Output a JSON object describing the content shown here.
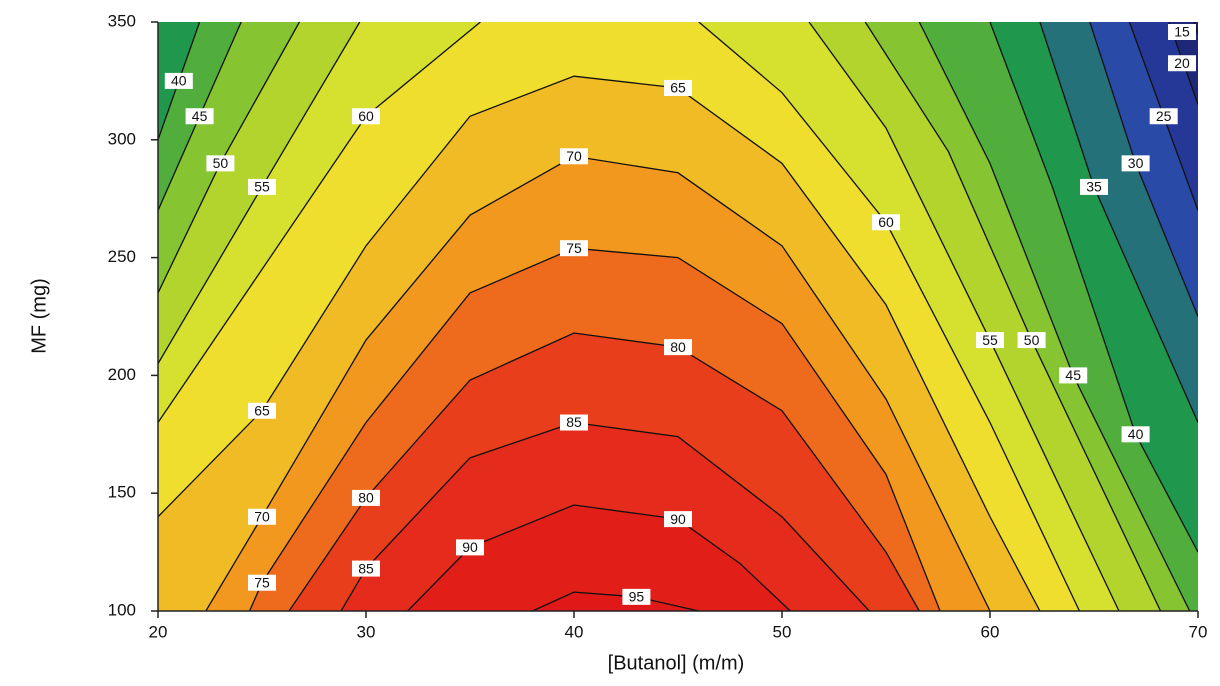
{
  "chart_data": {
    "type": "contour",
    "x_label": "[Butanol] (m/m)",
    "y_label": "MF (mg)",
    "xlim": [
      20,
      70
    ],
    "ylim": [
      100,
      350
    ],
    "xticks": [
      20,
      30,
      40,
      50,
      60,
      70
    ],
    "yticks": [
      100,
      150,
      200,
      250,
      300,
      350
    ],
    "colormap": [
      "#1c1f6a",
      "#2a44b0",
      "#1f9a48",
      "#9ccc2c",
      "#eeea30",
      "#f39a1e",
      "#e8341c",
      "#e01818"
    ],
    "contours": [
      {
        "level": 15,
        "x": [
          69.8,
          70
        ],
        "y": [
          350,
          345
        ]
      },
      {
        "level": 20,
        "x": [
          68.6,
          70
        ],
        "y": [
          350,
          315
        ]
      },
      {
        "level": 25,
        "x": [
          66.7,
          70
        ],
        "y": [
          350,
          270
        ]
      },
      {
        "level": 30,
        "x": [
          64.8,
          67,
          70
        ],
        "y": [
          350,
          290,
          225
        ]
      },
      {
        "level": 35,
        "x": [
          62.4,
          65,
          70
        ],
        "y": [
          350,
          280,
          180
        ]
      },
      {
        "level": 40,
        "x": [
          20,
          22,
          null,
          60,
          63,
          67,
          70
        ],
        "y": [
          300,
          350,
          null,
          350,
          280,
          175,
          125
        ]
      },
      {
        "level": 45,
        "x": [
          20,
          24,
          null,
          56.6,
          60,
          64,
          69.6
        ],
        "y": [
          270,
          350,
          null,
          350,
          290,
          200,
          100
        ]
      },
      {
        "level": 50,
        "x": [
          20,
          23,
          26.8,
          null,
          54,
          58,
          62,
          68.2
        ],
        "y": [
          235,
          290,
          350,
          null,
          350,
          295,
          215,
          100
        ]
      },
      {
        "level": 55,
        "x": [
          20,
          25,
          29.7,
          null,
          51.3,
          55,
          60,
          66.2
        ],
        "y": [
          205,
          280,
          350,
          null,
          350,
          305,
          215,
          100
        ]
      },
      {
        "level": 60,
        "x": [
          20,
          25,
          30,
          35.5,
          null,
          46,
          50,
          55,
          60,
          64.3
        ],
        "y": [
          180,
          245,
          310,
          350,
          null,
          350,
          320,
          265,
          180,
          100
        ]
      },
      {
        "level": 65,
        "x": [
          20,
          25,
          30,
          35,
          40,
          45,
          50,
          55,
          60,
          62.4
        ],
        "y": [
          140,
          185,
          255,
          310,
          327,
          322,
          290,
          230,
          140,
          100
        ]
      },
      {
        "level": 70,
        "x": [
          22.3,
          25,
          30,
          35,
          40,
          45,
          50,
          55,
          60
        ],
        "y": [
          100,
          140,
          215,
          268,
          293,
          286,
          255,
          190,
          100
        ]
      },
      {
        "level": 75,
        "x": [
          24.4,
          25,
          30,
          35,
          40,
          45,
          50,
          55,
          57.6
        ],
        "y": [
          100,
          112,
          180,
          235,
          254,
          250,
          222,
          158,
          100
        ]
      },
      {
        "level": 80,
        "x": [
          26.3,
          30,
          35,
          40,
          45,
          50,
          55,
          56.6
        ],
        "y": [
          100,
          148,
          198,
          218,
          212,
          185,
          125,
          100
        ]
      },
      {
        "level": 85,
        "x": [
          28.8,
          30,
          35,
          40,
          45,
          50,
          54.2
        ],
        "y": [
          100,
          118,
          165,
          180,
          174,
          140,
          100
        ]
      },
      {
        "level": 90,
        "x": [
          32,
          35,
          40,
          45,
          48,
          50.4
        ],
        "y": [
          100,
          127,
          145,
          139,
          120,
          100
        ]
      },
      {
        "level": 95,
        "x": [
          38,
          40,
          43,
          46
        ],
        "y": [
          100,
          108,
          106,
          100
        ]
      }
    ]
  }
}
